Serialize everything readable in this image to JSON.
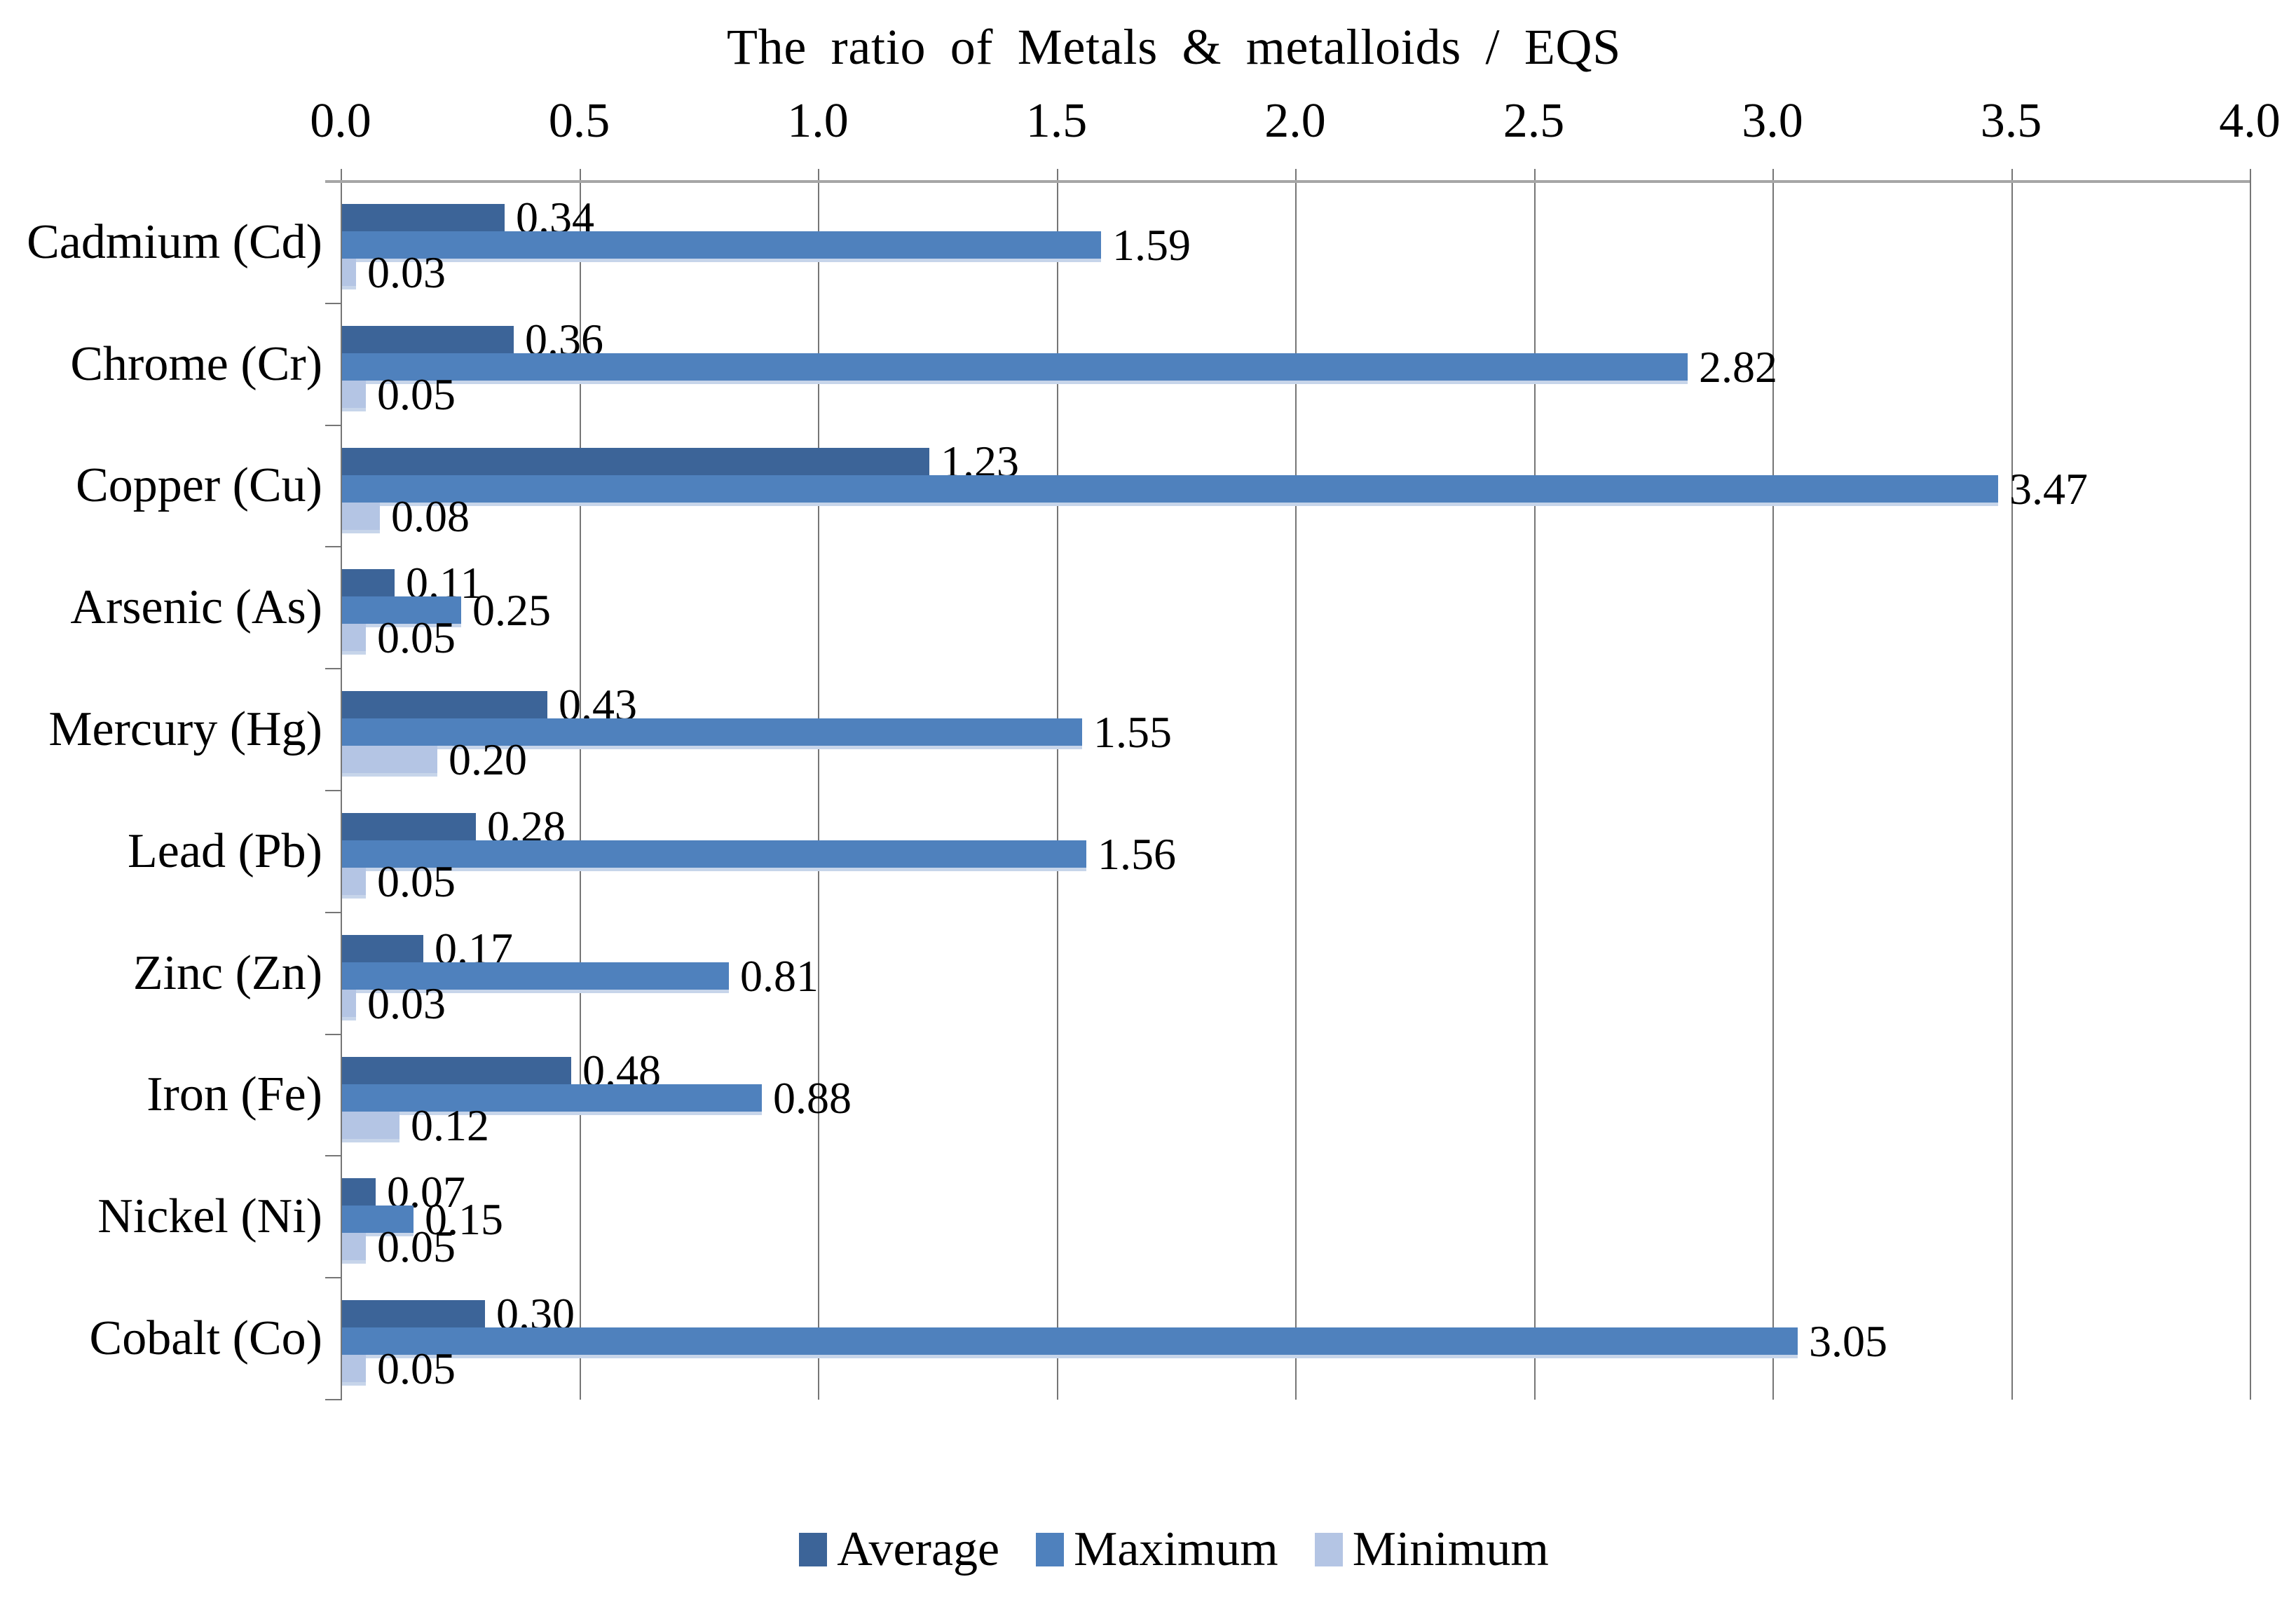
{
  "chart_data": {
    "type": "bar",
    "orientation": "horizontal",
    "title": "The ratio of Metals & metalloids / EQS",
    "categories": [
      "Cadmium (Cd)",
      "Chrome (Cr)",
      "Copper (Cu)",
      "Arsenic (As)",
      "Mercury (Hg)",
      "Lead (Pb)",
      "Zinc (Zn)",
      "Iron (Fe)",
      "Nickel (Ni)",
      "Cobalt (Co)"
    ],
    "series": [
      {
        "name": "Average",
        "color": "#3c6498",
        "values": [
          0.34,
          0.36,
          1.23,
          0.11,
          0.43,
          0.28,
          0.17,
          0.48,
          0.07,
          0.3
        ]
      },
      {
        "name": "Maximum",
        "color": "#4f81bd",
        "values": [
          1.59,
          2.82,
          3.47,
          0.25,
          1.55,
          1.56,
          0.81,
          0.88,
          0.15,
          3.05
        ]
      },
      {
        "name": "Minimum",
        "color": "#b4c5e4",
        "values": [
          0.03,
          0.05,
          0.08,
          0.05,
          0.2,
          0.05,
          0.03,
          0.12,
          0.05,
          0.05
        ]
      }
    ],
    "data_labels": {
      "Average": [
        "0.34",
        "0.36",
        "1.23",
        "0.11",
        "0.43",
        "0.28",
        "0.17",
        "0.48",
        "0.07",
        "0.30"
      ],
      "Maximum": [
        "1.59",
        "2.82",
        "3.47",
        "0.25",
        "1.55",
        "1.56",
        "0.81",
        "0.88",
        "0.15",
        "3.05"
      ],
      "Minimum": [
        "0.03",
        "0.05",
        "0.08",
        "0.05",
        "0.20",
        "0.05",
        "0.03",
        "0.12",
        "0.05",
        "0.05"
      ]
    },
    "x_ticks": [
      "0.0",
      "0.5",
      "1.0",
      "1.5",
      "2.0",
      "2.5",
      "3.0",
      "3.5",
      "4.0"
    ],
    "xlim": [
      0,
      4.0
    ],
    "gridlines": true,
    "legend_position": "bottom",
    "legend_entries": [
      "Average",
      "Maximum",
      "Minimum"
    ],
    "colors": {
      "gridline": "#767676",
      "axis": "#a6a6a6",
      "text": "#000000",
      "background": "#ffffff"
    }
  }
}
